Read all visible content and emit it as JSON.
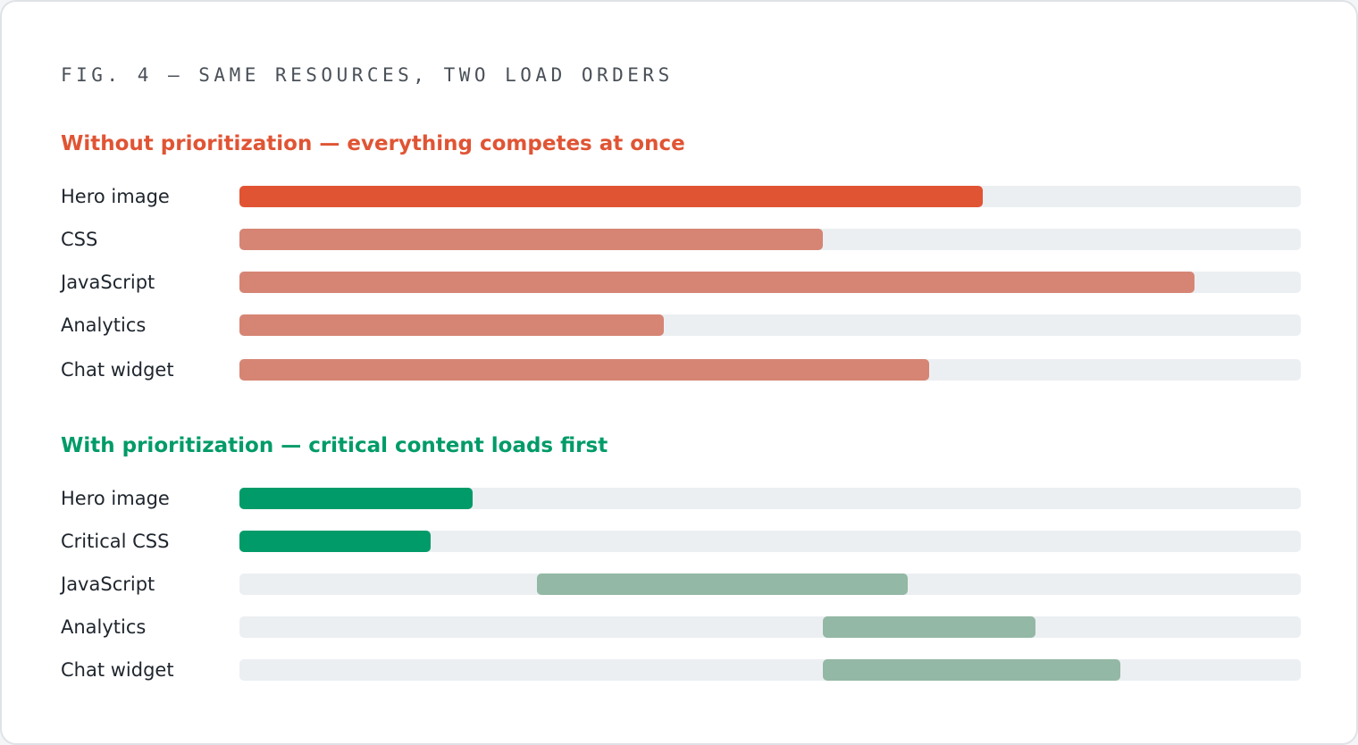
{
  "figure": {
    "title": "FIG. 4 — SAME RESOURCES, TWO LOAD ORDERS"
  },
  "chart_data": [
    {
      "type": "bar",
      "orientation": "horizontal",
      "title": "Without prioritization — everything competes at once",
      "categories": [
        "Hero image",
        "CSS",
        "JavaScript",
        "Analytics",
        "Chat widget"
      ],
      "starts": [
        0,
        0,
        0,
        0,
        0
      ],
      "ends": [
        70,
        55,
        90,
        40,
        65
      ],
      "xlim": [
        0,
        100
      ],
      "colors": [
        "#e05434",
        "#d68574",
        "#d68574",
        "#d68574",
        "#d68574"
      ],
      "track_color": "#eceff2"
    },
    {
      "type": "bar",
      "orientation": "horizontal",
      "title": "With prioritization — critical content loads first",
      "categories": [
        "Hero image",
        "Critical CSS",
        "JavaScript",
        "Analytics",
        "Chat widget"
      ],
      "starts": [
        0,
        0,
        28,
        55,
        55
      ],
      "ends": [
        22,
        18,
        63,
        75,
        83
      ],
      "xlim": [
        0,
        100
      ],
      "colors": [
        "#009b68",
        "#009b68",
        "#93b8a5",
        "#93b8a5",
        "#93b8a5"
      ],
      "track_color": "#eceff2"
    }
  ]
}
